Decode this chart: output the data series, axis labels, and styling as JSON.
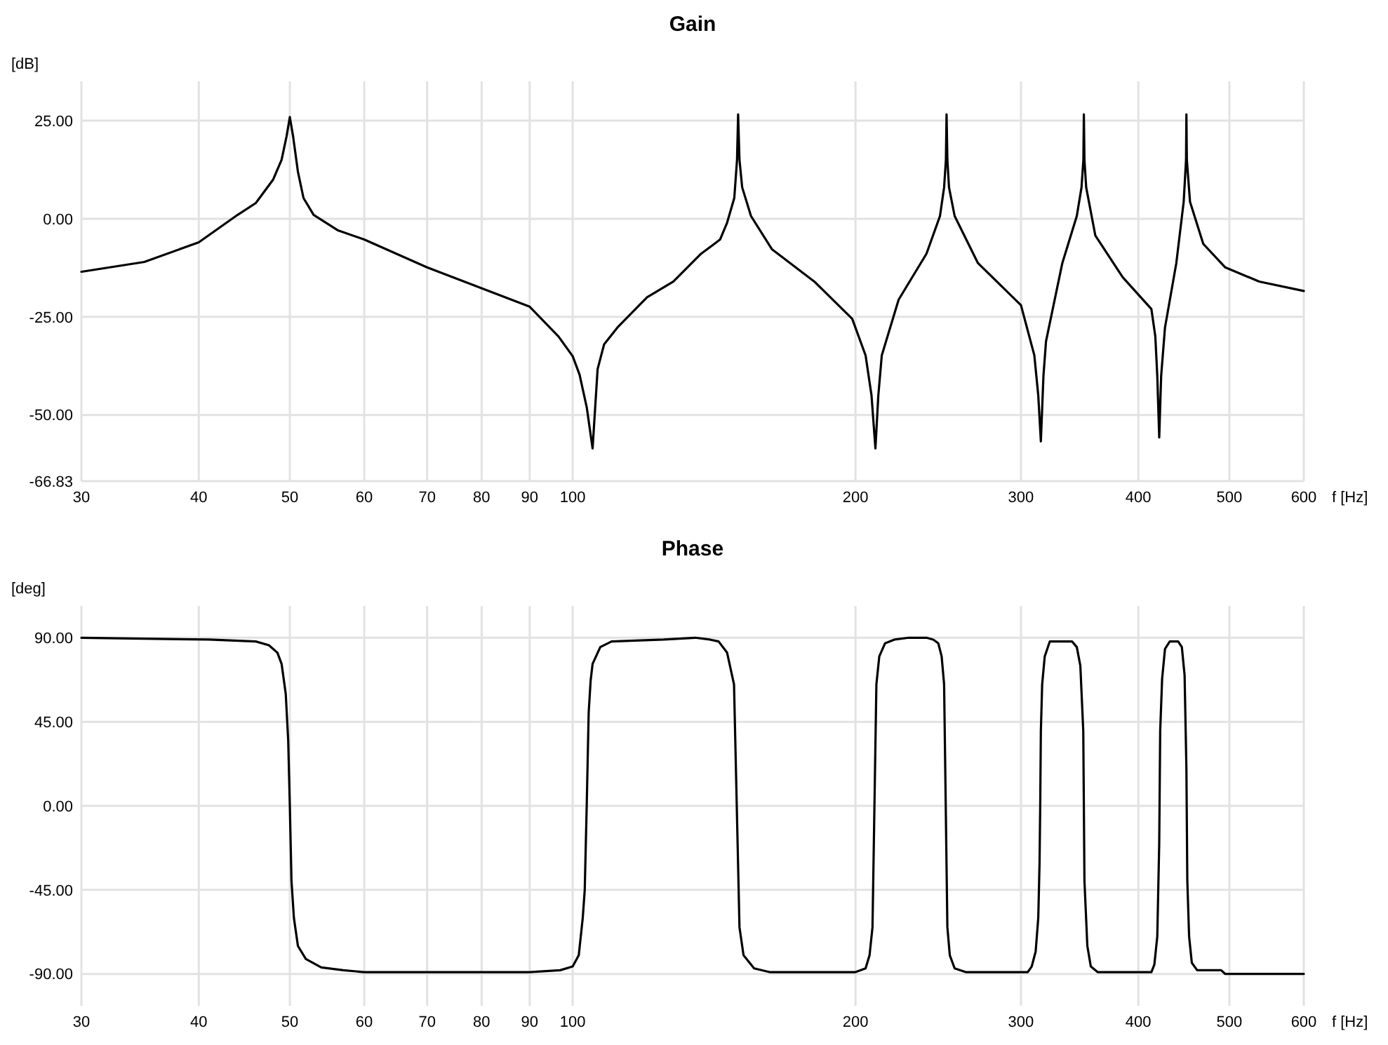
{
  "chart_data": [
    {
      "type": "line",
      "title": "Gain",
      "ylabel": "[dB]",
      "xlabel": "f [Hz]",
      "log": "x",
      "grid": true,
      "marker": "none",
      "line_style": "solid",
      "xlim": [
        30,
        600
      ],
      "xticks": [
        30,
        40,
        50,
        60,
        70,
        80,
        90,
        100,
        200,
        300,
        400,
        500,
        600
      ],
      "ylim": [
        -66.83,
        35
      ],
      "yticks": [
        {
          "value": 25,
          "label": "25.00"
        },
        {
          "value": 0,
          "label": "0.00"
        },
        {
          "value": -25,
          "label": "-25.00"
        },
        {
          "value": -50,
          "label": "-50.00"
        },
        -66.83
      ],
      "series": [
        {
          "color": "#000000",
          "x": [
            30,
            35,
            40,
            44,
            46,
            48,
            49,
            49.6,
            50,
            50.4,
            51,
            51.7,
            53,
            56.2,
            60,
            70,
            80,
            90,
            96.6,
            100,
            101.7,
            103.5,
            105,
            106.3,
            108,
            111.6,
            120,
            128,
            137,
            143.5,
            146,
            148.6,
            149.6,
            150,
            150.5,
            151.5,
            154.8,
            163,
            180.8,
            198.4,
            205,
            208,
            210,
            211.5,
            213.3,
            222.3,
            238,
            246,
            248.5,
            249.6,
            250,
            250.5,
            251.5,
            255,
            270,
            300,
            310,
            313,
            315,
            317,
            319,
            332,
            344,
            348,
            349.6,
            350,
            350.5,
            352,
            360,
            385,
            413,
            417,
            419,
            421,
            423,
            427,
            439,
            447,
            449.6,
            450,
            450.5,
            454,
            469,
            495,
            538,
            600
          ],
          "values": [
            -13.5,
            -11,
            -6,
            1,
            4,
            10,
            15,
            21,
            25.9,
            21,
            12,
            5.3,
            1,
            -2.9,
            -5.3,
            -12.4,
            -17.7,
            -22.4,
            -30,
            -35,
            -39.7,
            -48,
            -58.5,
            -38.3,
            -32,
            -27.7,
            -20,
            -16,
            -8.9,
            -5.3,
            -1,
            5.3,
            15,
            26.6,
            15,
            8,
            0.7,
            -7.8,
            -16,
            -25.5,
            -34.8,
            -45,
            -58.5,
            -45,
            -34.8,
            -20.6,
            -8.9,
            0.7,
            8,
            15,
            26.6,
            15,
            8,
            0.7,
            -11.3,
            -22,
            -34.8,
            -45,
            -56.7,
            -40,
            -31.2,
            -11.3,
            0.7,
            8,
            15,
            26.6,
            15,
            8,
            -4.3,
            -14.9,
            -23,
            -30,
            -40,
            -55.7,
            -40,
            -27.7,
            -11.3,
            4.3,
            15,
            26.6,
            15,
            4.3,
            -6.4,
            -12.4,
            -16,
            -18.4
          ]
        }
      ]
    },
    {
      "type": "line",
      "title": "Phase",
      "ylabel": "[deg]",
      "xlabel": "f [Hz]",
      "log": "x",
      "grid": true,
      "marker": "none",
      "line_style": "solid",
      "xlim": [
        30,
        600
      ],
      "xticks": [
        30,
        40,
        50,
        60,
        70,
        80,
        90,
        100,
        200,
        300,
        400,
        500,
        600
      ],
      "ylim": [
        -107,
        107
      ],
      "yticks": [
        {
          "value": 90,
          "label": "90.00"
        },
        {
          "value": 45,
          "label": "45.00"
        },
        {
          "value": 0,
          "label": "0.00"
        },
        {
          "value": -45,
          "label": "-45.00"
        },
        {
          "value": -90,
          "label": "-90.00"
        }
      ],
      "series": [
        {
          "color": "#000000",
          "x": [
            30,
            41,
            46,
            47.5,
            48.5,
            49,
            49.5,
            49.8,
            50,
            50.2,
            50.5,
            51,
            52,
            54,
            57,
            60,
            90,
            97,
            100,
            101.5,
            102.5,
            103,
            103.5,
            104,
            104.5,
            105,
            107,
            110,
            125,
            135,
            140,
            143,
            146,
            148.5,
            149.5,
            150.5,
            152,
            156,
            162,
            200,
            205,
            207,
            208.5,
            209.5,
            210.5,
            212,
            215,
            220,
            228,
            238,
            242,
            245,
            247,
            248.5,
            249.5,
            250.5,
            252,
            255,
            262,
            305,
            308,
            311,
            313,
            314,
            314.5,
            315,
            316,
            318,
            322,
            340,
            344,
            347,
            349.5,
            350.5,
            353,
            356,
            362,
            413,
            416,
            419,
            421,
            422,
            424,
            427,
            432,
            441,
            445,
            448,
            450,
            451,
            453,
            456,
            462,
            490,
            495,
            600
          ],
          "values": [
            90,
            89,
            88,
            86,
            82,
            76,
            60,
            35,
            0,
            -40,
            -60,
            -75,
            -82,
            -86.5,
            -88,
            -89,
            -89,
            -88,
            -86,
            -80,
            -60,
            -45,
            0,
            50,
            67,
            76,
            85,
            88,
            89,
            90,
            89,
            88,
            82,
            65,
            0,
            -65,
            -80,
            -87,
            -89,
            -89,
            -87,
            -80,
            -65,
            0,
            65,
            80,
            87,
            89,
            90,
            90,
            89,
            87,
            80,
            65,
            0,
            -65,
            -80,
            -87,
            -89,
            -89,
            -86,
            -78,
            -60,
            -30,
            0,
            40,
            65,
            80,
            88,
            88,
            85,
            75,
            40,
            -40,
            -75,
            -86,
            -89,
            -89,
            -85,
            -70,
            -20,
            40,
            68,
            84,
            88,
            88,
            85,
            70,
            20,
            -40,
            -70,
            -84,
            -88,
            -88,
            -90,
            -90
          ]
        }
      ]
    }
  ]
}
